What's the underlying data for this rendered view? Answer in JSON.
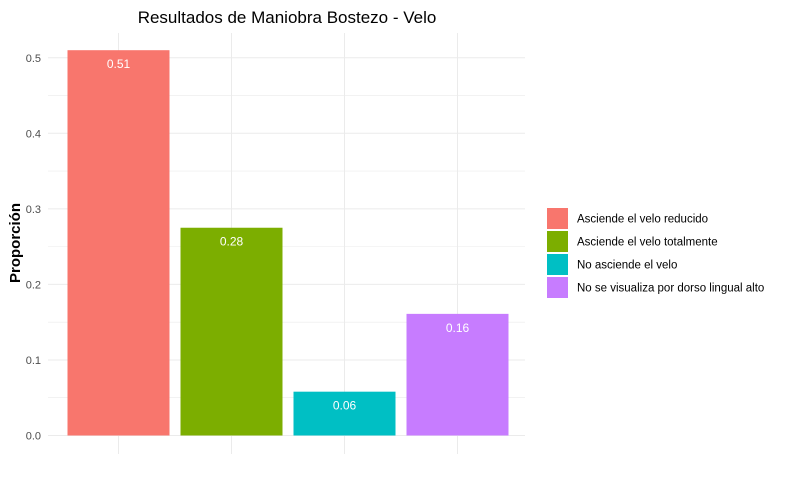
{
  "chart_data": {
    "type": "bar",
    "title": "Resultados de Maniobra Bostezo - Velo",
    "xlabel": "",
    "ylabel": "Proporción",
    "ylim": [
      0,
      0.52
    ],
    "yticks": [
      "0.0",
      "0.1",
      "0.2",
      "0.3",
      "0.4",
      "0.5"
    ],
    "grid": true,
    "legend_position": "right",
    "categories": [
      "Asciende el velo reducido",
      "Asciende el velo totalmente",
      "No asciende el velo",
      "No se visualiza por dorso lingual alto"
    ],
    "values": [
      0.51,
      0.275,
      0.058,
      0.161
    ],
    "data_labels": [
      "0.51",
      "0.28",
      "0.06",
      "0.16"
    ],
    "colors": [
      "#F8766D",
      "#7CAE00",
      "#00BFC4",
      "#C77CFF"
    ]
  }
}
